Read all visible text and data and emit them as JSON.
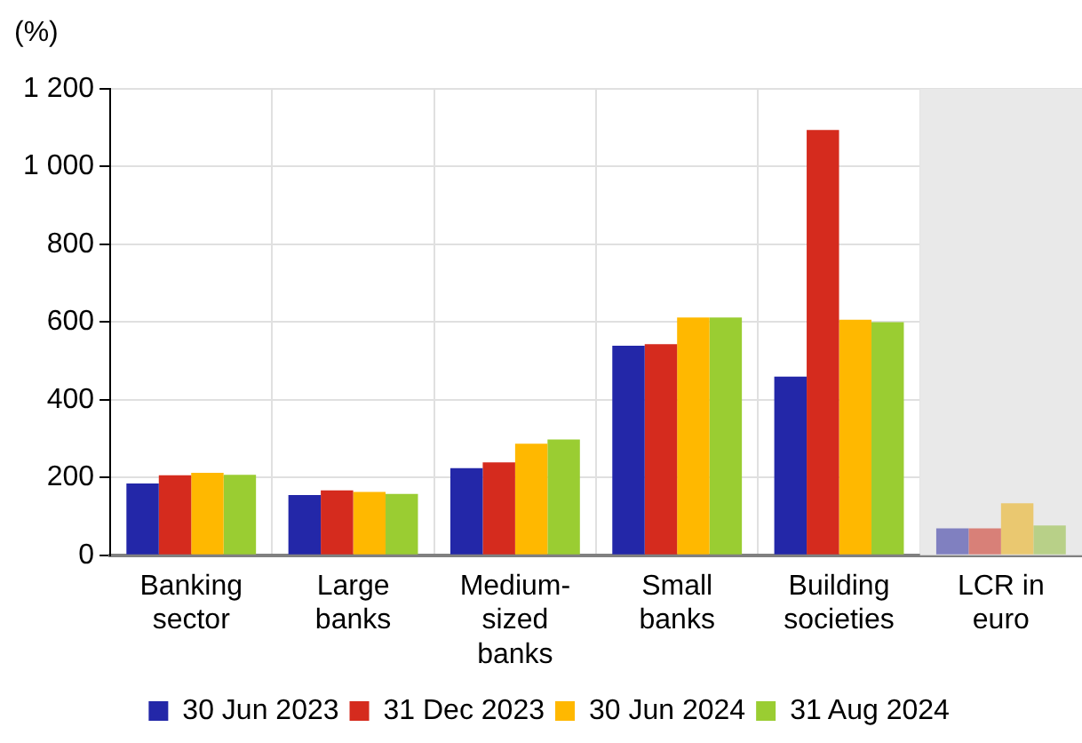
{
  "chart_data": {
    "type": "bar",
    "ylabel": "(%)",
    "categories": [
      "Banking\nsector",
      "Large\nbanks",
      "Medium-\nsized\nbanks",
      "Small\nbanks",
      "Building\nsocieties",
      "LCR in\neuro"
    ],
    "series": [
      {
        "name": "30 Jun 2023",
        "color": "#2327a8",
        "colors": [
          "#2327a8",
          "#2327a8",
          "#2327a8",
          "#2327a8",
          "#2327a8",
          "#8080c0"
        ],
        "values": [
          185,
          155,
          224,
          539,
          460,
          69
        ]
      },
      {
        "name": "31 Dec 2023",
        "color": "#d52b1e",
        "colors": [
          "#d52b1e",
          "#d52b1e",
          "#d52b1e",
          "#d52b1e",
          "#d52b1e",
          "#d88078"
        ],
        "values": [
          206,
          167,
          239,
          543,
          1094,
          69
        ]
      },
      {
        "name": "30 Jun 2024",
        "color": "#ffb800",
        "colors": [
          "#ffb800",
          "#ffb800",
          "#ffb800",
          "#ffb800",
          "#ffb800",
          "#eac870"
        ],
        "values": [
          212,
          163,
          287,
          612,
          606,
          134
        ]
      },
      {
        "name": "31 Aug 2024",
        "color": "#9acd32",
        "colors": [
          "#9acd32",
          "#9acd32",
          "#9acd32",
          "#9acd32",
          "#9acd32",
          "#b8d088"
        ],
        "values": [
          207,
          158,
          298,
          612,
          600,
          77
        ]
      }
    ],
    "ylim": [
      0,
      1200
    ],
    "yticks": [
      0,
      200,
      400,
      600,
      800,
      {
        "value": 1000,
        "label": "1 000"
      },
      {
        "value": 1200,
        "label": "1 200"
      }
    ],
    "bands": [
      {
        "axis": "x",
        "from": "LCR in\neuro",
        "to": "LCR in\neuro",
        "color": "#e9e9e9"
      }
    ],
    "grid": true,
    "legend": "bottom"
  }
}
